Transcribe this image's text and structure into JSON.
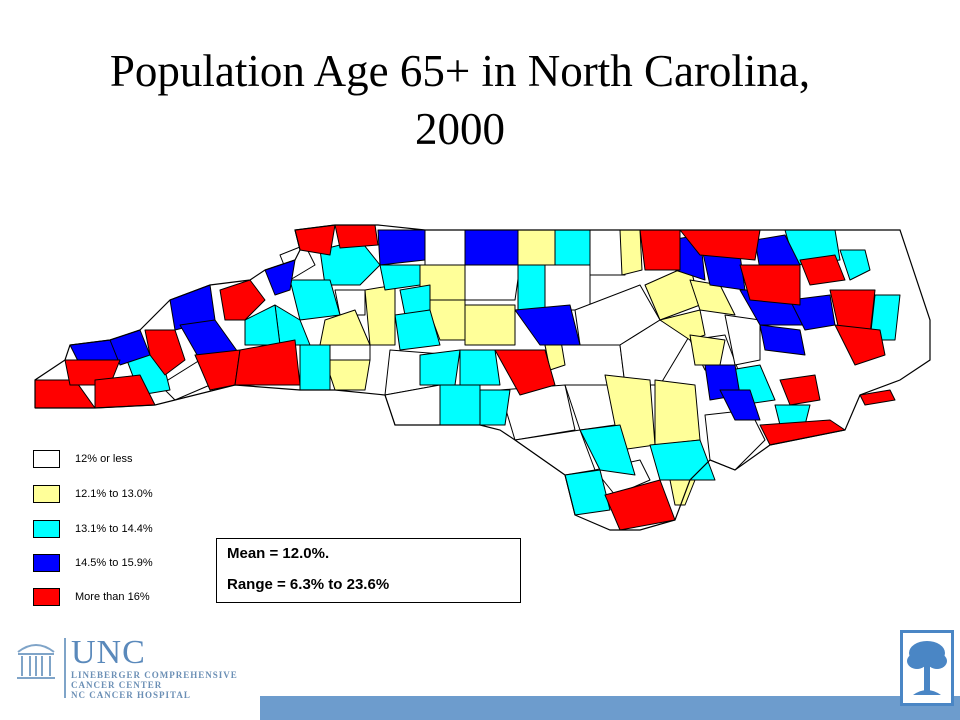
{
  "slide": {
    "title_line1": "Population Age 65+ in North Carolina,",
    "title_line2": "2000"
  },
  "map": {
    "region": "North Carolina",
    "categories": [
      {
        "label": "12% or less",
        "color": "#ffffff"
      },
      {
        "label": "12.1% to 13.0%",
        "color": "#ffff99"
      },
      {
        "label": "13.1% to 14.4%",
        "color": "#00ffff"
      },
      {
        "label": "14.5% to 15.9%",
        "color": "#0000ff"
      },
      {
        "label": "More than 16%",
        "color": "#ff0000"
      }
    ]
  },
  "stats": {
    "mean": "Mean = 12.0%.",
    "range": "Range = 6.3% to 23.6%"
  },
  "logo": {
    "name": "UNC",
    "line1": "LINEBERGER COMPREHENSIVE",
    "line2": "CANCER CENTER",
    "line3": "NC CANCER HOSPITAL"
  }
}
